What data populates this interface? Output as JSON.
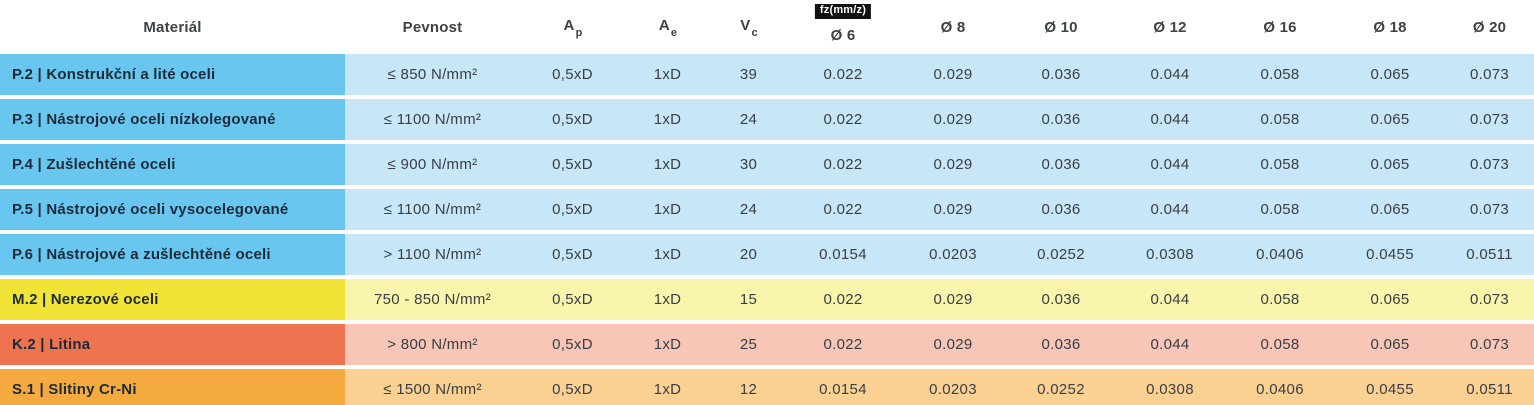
{
  "table": {
    "columns": {
      "material": "Materiál",
      "pevnost": "Pevnost",
      "ap": {
        "base": "A",
        "sub": "p"
      },
      "ae": {
        "base": "A",
        "sub": "e"
      },
      "vc": {
        "base": "V",
        "sub": "c"
      },
      "fz_badge": "fz(mm/z)",
      "diameters": [
        "Ø 6",
        "Ø 8",
        "Ø 10",
        "Ø 12",
        "Ø 16",
        "Ø 18",
        "Ø 20"
      ]
    },
    "rows": [
      {
        "group": "P",
        "material": "P.2 | Konstrukční a lité oceli",
        "pevnost": "≤ 850 N/mm²",
        "ap": "0,5xD",
        "ae": "1xD",
        "vc": "39",
        "fz": [
          "0.022",
          "0.029",
          "0.036",
          "0.044",
          "0.058",
          "0.065",
          "0.073"
        ]
      },
      {
        "group": "P",
        "material": "P.3 | Nástrojové oceli nízkolegované",
        "pevnost": "≤ 1100 N/mm²",
        "ap": "0,5xD",
        "ae": "1xD",
        "vc": "24",
        "fz": [
          "0.022",
          "0.029",
          "0.036",
          "0.044",
          "0.058",
          "0.065",
          "0.073"
        ]
      },
      {
        "group": "P",
        "material": "P.4 | Zušlechtěné oceli",
        "pevnost": "≤ 900 N/mm²",
        "ap": "0,5xD",
        "ae": "1xD",
        "vc": "30",
        "fz": [
          "0.022",
          "0.029",
          "0.036",
          "0.044",
          "0.058",
          "0.065",
          "0.073"
        ]
      },
      {
        "group": "P",
        "material": "P.5 | Nástrojové oceli vysocelegované",
        "pevnost": "≤ 1100 N/mm²",
        "ap": "0,5xD",
        "ae": "1xD",
        "vc": "24",
        "fz": [
          "0.022",
          "0.029",
          "0.036",
          "0.044",
          "0.058",
          "0.065",
          "0.073"
        ]
      },
      {
        "group": "P",
        "material": "P.6 | Nástrojové a zušlechtěné oceli",
        "pevnost": "> 1100 N/mm²",
        "ap": "0,5xD",
        "ae": "1xD",
        "vc": "20",
        "fz": [
          "0.0154",
          "0.0203",
          "0.0252",
          "0.0308",
          "0.0406",
          "0.0455",
          "0.0511"
        ]
      },
      {
        "group": "M",
        "material": "M.2 | Nerezové oceli",
        "pevnost": "750 - 850 N/mm²",
        "ap": "0,5xD",
        "ae": "1xD",
        "vc": "15",
        "fz": [
          "0.022",
          "0.029",
          "0.036",
          "0.044",
          "0.058",
          "0.065",
          "0.073"
        ]
      },
      {
        "group": "K",
        "material": "K.2 | Litina",
        "pevnost": "> 800 N/mm²",
        "ap": "0,5xD",
        "ae": "1xD",
        "vc": "25",
        "fz": [
          "0.022",
          "0.029",
          "0.036",
          "0.044",
          "0.058",
          "0.065",
          "0.073"
        ]
      },
      {
        "group": "S",
        "material": "S.1 | Slitiny Cr-Ni",
        "pevnost": "≤ 1500 N/mm²",
        "ap": "0,5xD",
        "ae": "1xD",
        "vc": "12",
        "fz": [
          "0.0154",
          "0.0203",
          "0.0252",
          "0.0308",
          "0.0406",
          "0.0455",
          "0.0511"
        ]
      }
    ],
    "colors": {
      "P": {
        "strong": "#69c6ef",
        "light": "#c7e7f8"
      },
      "M": {
        "strong": "#f2e436",
        "light": "#faf5ac"
      },
      "K": {
        "strong": "#ee7450",
        "light": "#f7c6b6"
      },
      "S": {
        "strong": "#f5aa3f",
        "light": "#fad193"
      },
      "badge_bg": "#111111",
      "badge_text": "#ffffff"
    }
  }
}
